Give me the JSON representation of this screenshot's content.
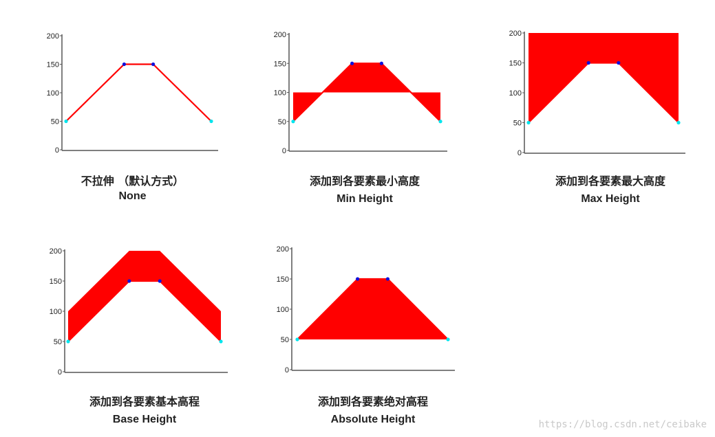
{
  "chart_data": [
    {
      "type": "area",
      "mode": "none",
      "title_cn": "不拉伸 （默认方式）",
      "title_en": "None",
      "x": [
        0,
        1,
        1.5,
        2.5
      ],
      "y": [
        50,
        150,
        150,
        50
      ],
      "ylim": [
        0,
        200
      ],
      "yticks": [
        "0",
        "50",
        "100",
        "150",
        "200"
      ]
    },
    {
      "type": "area",
      "mode": "min",
      "title_cn": "添加到各要素最小高度",
      "title_en": "Min Height",
      "x": [
        0,
        1,
        1.5,
        2.5
      ],
      "y": [
        50,
        150,
        150,
        50
      ],
      "base": 100,
      "ylim": [
        0,
        200
      ],
      "yticks": [
        "0",
        "50",
        "100",
        "150",
        "200"
      ]
    },
    {
      "type": "area",
      "mode": "max",
      "title_cn": "添加到各要素最大高度",
      "title_en": "Max Height",
      "x": [
        0,
        1,
        1.5,
        2.5
      ],
      "y": [
        50,
        150,
        150,
        50
      ],
      "top": 200,
      "ylim": [
        0,
        200
      ],
      "yticks": [
        "0",
        "50",
        "100",
        "150",
        "200"
      ]
    },
    {
      "type": "area",
      "mode": "base",
      "title_cn": "添加到各要素基本高程",
      "title_en": "Base Height",
      "x": [
        0,
        1,
        1.5,
        2.5
      ],
      "y": [
        50,
        150,
        150,
        50
      ],
      "offset": 50,
      "ylim": [
        0,
        200
      ],
      "yticks": [
        "0",
        "50",
        "100",
        "150",
        "200"
      ]
    },
    {
      "type": "area",
      "mode": "absolute",
      "title_cn": "添加到各要素绝对高程",
      "title_en": "Absolute Height",
      "x": [
        0,
        1,
        1.5,
        2.5
      ],
      "y": [
        50,
        150,
        150,
        50
      ],
      "base": 50,
      "ylim": [
        0,
        200
      ],
      "yticks": [
        "0",
        "50",
        "100",
        "150",
        "200"
      ]
    }
  ],
  "colors": {
    "fill": "#ff0000",
    "endpoint": "#00e5ee",
    "vertex": "#1010dd",
    "axis": "#555555"
  },
  "watermark": "https://blog.csdn.net/ceibake"
}
